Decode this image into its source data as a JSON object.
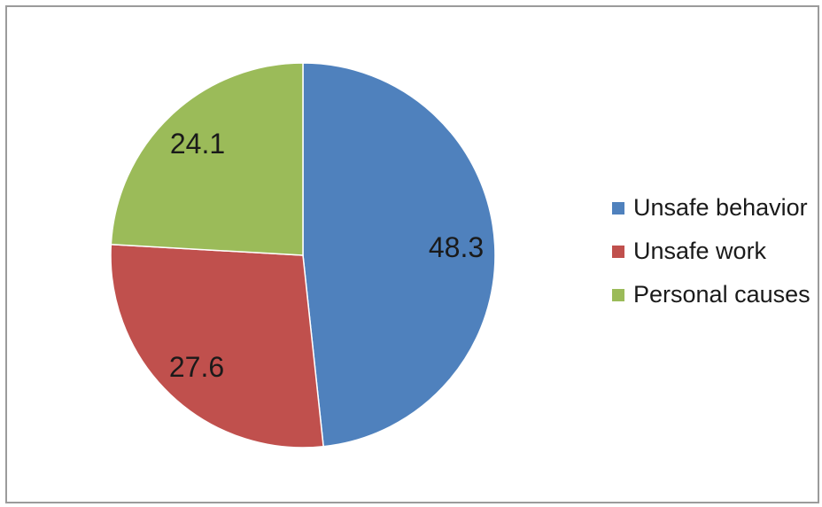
{
  "window": {
    "background": "#ffffff",
    "frame_border_color": "#9b9b9b"
  },
  "chart_data": {
    "type": "pie",
    "title": "",
    "start_angle_deg": 0,
    "direction": "clockwise",
    "series": [
      {
        "label": "Unsafe behavior",
        "value": 48.3,
        "color": "#4F81BD"
      },
      {
        "label": "Unsafe work",
        "value": 27.6,
        "color": "#C0504D"
      },
      {
        "label": "Personal causes",
        "value": 24.1,
        "color": "#9BBB59"
      }
    ],
    "data_labels": [
      "48.3",
      "27.6",
      "24.1"
    ],
    "data_label_color": "#1a1a1a",
    "slice_border_color": "#ffffff",
    "legend": {
      "position": "right",
      "entries": [
        "Unsafe behavior",
        "Unsafe work",
        "Personal causes"
      ]
    }
  }
}
